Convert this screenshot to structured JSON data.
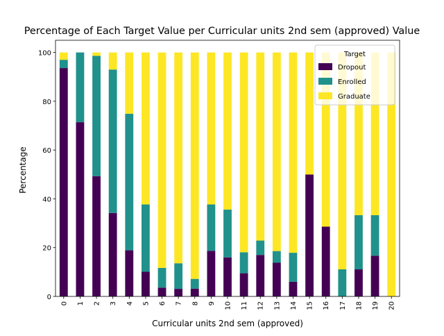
{
  "chart_data": {
    "type": "bar",
    "stacked": true,
    "title": "Percentage of Each Target Value per Curricular units 2nd sem (approved) Value",
    "xlabel": "Curricular units 2nd sem (approved)",
    "ylabel": "Percentage",
    "ylim": [
      0,
      105
    ],
    "yticks": [
      0,
      20,
      40,
      60,
      80,
      100
    ],
    "grid": false,
    "legend": {
      "title": "Target",
      "placement": "top-right"
    },
    "categories": [
      "0",
      "1",
      "2",
      "3",
      "4",
      "5",
      "6",
      "7",
      "8",
      "9",
      "10",
      "11",
      "12",
      "13",
      "14",
      "15",
      "16",
      "17",
      "18",
      "19",
      "20"
    ],
    "series": [
      {
        "name": "Dropout",
        "color": "#440154",
        "values": [
          93.6,
          71.4,
          49.3,
          34.2,
          18.9,
          10.1,
          3.6,
          3.1,
          3.2,
          18.7,
          16.0,
          9.5,
          17.0,
          13.8,
          6.0,
          50.0,
          28.6,
          0.0,
          11.1,
          16.7,
          0.0
        ]
      },
      {
        "name": "Enrolled",
        "color": "#21918c",
        "values": [
          3.4,
          28.6,
          49.3,
          58.8,
          56.0,
          27.6,
          8.1,
          10.5,
          4.0,
          19.0,
          19.6,
          8.6,
          5.9,
          4.8,
          11.9,
          0.0,
          0.0,
          11.1,
          22.2,
          16.6,
          0.0
        ]
      },
      {
        "name": "Graduate",
        "color": "#fde725",
        "values": [
          3.0,
          0.0,
          1.4,
          7.0,
          25.1,
          62.3,
          88.3,
          86.4,
          92.8,
          62.3,
          64.4,
          81.9,
          77.1,
          81.4,
          82.1,
          50.0,
          71.4,
          88.9,
          66.7,
          66.7,
          100.0
        ]
      }
    ]
  }
}
